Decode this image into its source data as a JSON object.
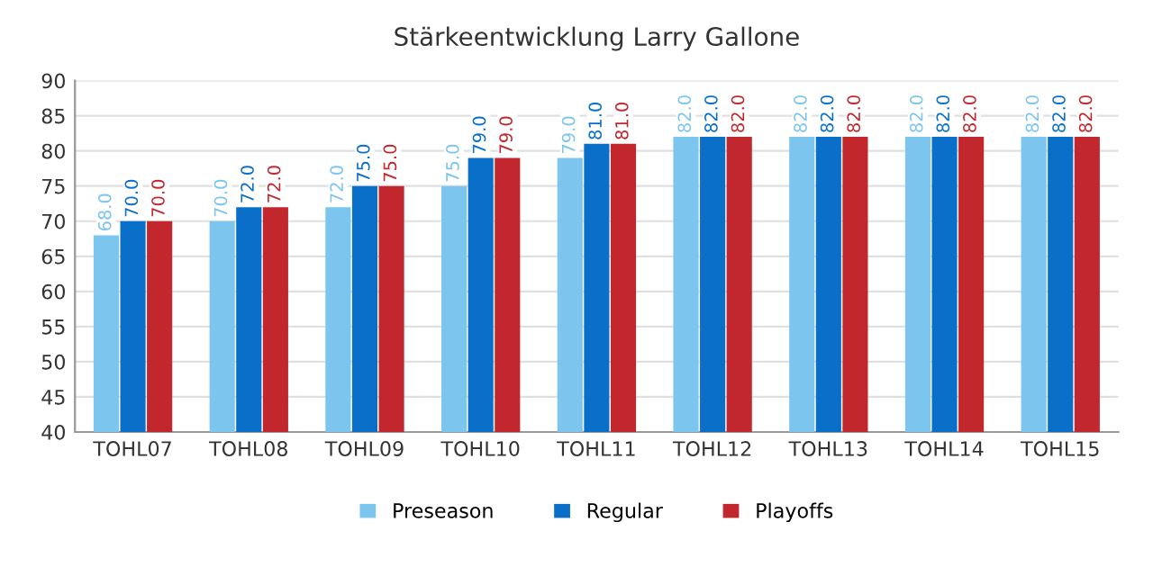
{
  "chart_data": {
    "type": "bar",
    "title": "Stärkeentwicklung Larry Gallone",
    "categories": [
      "TOHL07",
      "TOHL08",
      "TOHL09",
      "TOHL10",
      "TOHL11",
      "TOHL12",
      "TOHL13",
      "TOHL14",
      "TOHL15"
    ],
    "series": [
      {
        "name": "Preseason",
        "color": "#7cc5ef",
        "values": [
          68,
          70,
          72,
          75,
          79,
          82,
          82,
          82,
          82
        ],
        "value_labels": [
          "68.0",
          "70.0",
          "72.0",
          "75.0",
          "79.0",
          "82.0",
          "82.0",
          "82.0",
          "82.0"
        ]
      },
      {
        "name": "Regular",
        "color": "#0a6fc9",
        "values": [
          70,
          72,
          75,
          79,
          81,
          82,
          82,
          82,
          82
        ],
        "value_labels": [
          "70.0",
          "72.0",
          "75.0",
          "79.0",
          "81.0",
          "82.0",
          "82.0",
          "82.0",
          "82.0"
        ]
      },
      {
        "name": "Playoffs",
        "color": "#c1272d",
        "values": [
          70,
          72,
          75,
          79,
          81,
          82,
          82,
          82,
          82
        ],
        "value_labels": [
          "70.0",
          "72.0",
          "75.0",
          "79.0",
          "81.0",
          "82.0",
          "82.0",
          "82.0",
          "82.0"
        ]
      }
    ],
    "ylim": [
      40,
      90
    ],
    "yticks": [
      40,
      45,
      50,
      55,
      60,
      65,
      70,
      75,
      80,
      85,
      90
    ],
    "grid": "y",
    "legend": "bottom"
  }
}
